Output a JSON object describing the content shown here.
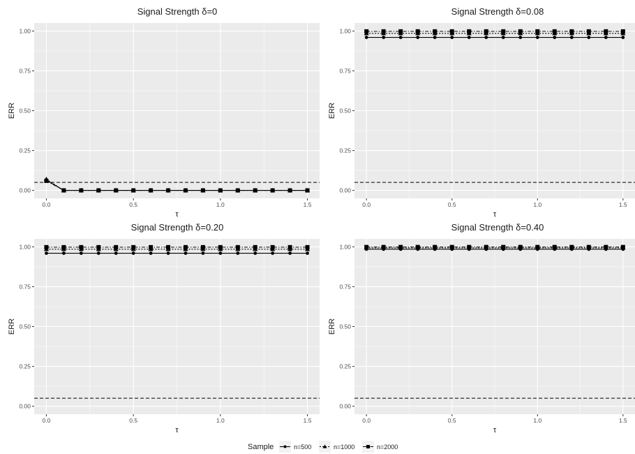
{
  "legend": {
    "title": "Sample",
    "items": [
      {
        "label": "n=500",
        "linetype": "solid",
        "shape": "circle"
      },
      {
        "label": "n=1000",
        "linetype": "dotted",
        "shape": "triangle"
      },
      {
        "label": "n=2000",
        "linetype": "dashdot",
        "shape": "square"
      }
    ]
  },
  "chart_data": [
    {
      "type": "line",
      "title": "Signal Strength δ=0",
      "xlabel": "τ",
      "ylabel": "ERR",
      "xlim": [
        -0.07,
        1.57
      ],
      "ylim": [
        -0.05,
        1.05
      ],
      "xticks": [
        0.0,
        0.5,
        1.0,
        1.5
      ],
      "xtick_labels": [
        "0.0",
        "0.5",
        "1.0",
        "1.5"
      ],
      "yticks": [
        0.0,
        0.25,
        0.5,
        0.75,
        1.0
      ],
      "ytick_labels": [
        "0.00",
        "0.25",
        "0.50",
        "0.75",
        "1.00"
      ],
      "reference_line": 0.05,
      "x": [
        0.0,
        0.1,
        0.2,
        0.3,
        0.4,
        0.5,
        0.6,
        0.7,
        0.8,
        0.9,
        1.0,
        1.1,
        1.2,
        1.3,
        1.4,
        1.5
      ],
      "series": [
        {
          "name": "n=500",
          "values": [
            0.065,
            0,
            0,
            0,
            0,
            0,
            0,
            0,
            0,
            0,
            0,
            0,
            0,
            0,
            0,
            0
          ]
        },
        {
          "name": "n=1000",
          "values": [
            0.07,
            0,
            0,
            0,
            0,
            0,
            0,
            0,
            0,
            0,
            0,
            0,
            0,
            0,
            0,
            0
          ]
        },
        {
          "name": "n=2000",
          "values": [
            0.06,
            0,
            0,
            0,
            0,
            0,
            0,
            0,
            0,
            0,
            0,
            0,
            0,
            0,
            0,
            0
          ]
        }
      ]
    },
    {
      "type": "line",
      "title": "Signal Strength δ=0.08",
      "xlabel": "τ",
      "ylabel": "ERR",
      "xlim": [
        -0.07,
        1.57
      ],
      "ylim": [
        -0.05,
        1.05
      ],
      "xticks": [
        0.0,
        0.5,
        1.0,
        1.5
      ],
      "xtick_labels": [
        "0.0",
        "0.5",
        "1.0",
        "1.5"
      ],
      "yticks": [
        0.0,
        0.25,
        0.5,
        0.75,
        1.0
      ],
      "ytick_labels": [
        "0.00",
        "0.25",
        "0.50",
        "0.75",
        "1.00"
      ],
      "reference_line": 0.05,
      "x": [
        0.0,
        0.1,
        0.2,
        0.3,
        0.4,
        0.5,
        0.6,
        0.7,
        0.8,
        0.9,
        1.0,
        1.1,
        1.2,
        1.3,
        1.4,
        1.5
      ],
      "series": [
        {
          "name": "n=500",
          "values": [
            0.96,
            0.96,
            0.96,
            0.96,
            0.96,
            0.96,
            0.96,
            0.96,
            0.96,
            0.96,
            0.96,
            0.96,
            0.96,
            0.96,
            0.96,
            0.96
          ]
        },
        {
          "name": "n=1000",
          "values": [
            0.985,
            0.985,
            0.985,
            0.985,
            0.985,
            0.985,
            0.985,
            0.985,
            0.985,
            0.985,
            0.985,
            0.985,
            0.985,
            0.985,
            0.985,
            0.985
          ]
        },
        {
          "name": "n=2000",
          "values": [
            0.998,
            0.998,
            0.998,
            0.998,
            0.998,
            0.998,
            0.998,
            0.998,
            0.998,
            0.998,
            0.998,
            0.998,
            0.998,
            0.998,
            0.998,
            0.998
          ]
        }
      ]
    },
    {
      "type": "line",
      "title": "Signal Strength δ=0.20",
      "xlabel": "τ",
      "ylabel": "ERR",
      "xlim": [
        -0.07,
        1.57
      ],
      "ylim": [
        -0.05,
        1.05
      ],
      "xticks": [
        0.0,
        0.5,
        1.0,
        1.5
      ],
      "xtick_labels": [
        "0.0",
        "0.5",
        "1.0",
        "1.5"
      ],
      "yticks": [
        0.0,
        0.25,
        0.5,
        0.75,
        1.0
      ],
      "ytick_labels": [
        "0.00",
        "0.25",
        "0.50",
        "0.75",
        "1.00"
      ],
      "reference_line": 0.05,
      "x": [
        0.0,
        0.1,
        0.2,
        0.3,
        0.4,
        0.5,
        0.6,
        0.7,
        0.8,
        0.9,
        1.0,
        1.1,
        1.2,
        1.3,
        1.4,
        1.5
      ],
      "series": [
        {
          "name": "n=500",
          "values": [
            0.96,
            0.96,
            0.96,
            0.96,
            0.96,
            0.96,
            0.96,
            0.96,
            0.96,
            0.96,
            0.96,
            0.96,
            0.96,
            0.96,
            0.96,
            0.96
          ]
        },
        {
          "name": "n=1000",
          "values": [
            0.985,
            0.985,
            0.985,
            0.985,
            0.985,
            0.985,
            0.985,
            0.985,
            0.985,
            0.985,
            0.985,
            0.985,
            0.985,
            0.985,
            0.985,
            0.985
          ]
        },
        {
          "name": "n=2000",
          "values": [
            0.998,
            0.998,
            0.998,
            0.998,
            0.998,
            0.998,
            0.998,
            0.998,
            0.998,
            0.998,
            0.998,
            0.998,
            0.998,
            0.998,
            0.998,
            0.998
          ]
        }
      ]
    },
    {
      "type": "line",
      "title": "Signal Strength δ=0.40",
      "xlabel": "τ",
      "ylabel": "ERR",
      "xlim": [
        -0.07,
        1.57
      ],
      "ylim": [
        -0.05,
        1.05
      ],
      "xticks": [
        0.0,
        0.5,
        1.0,
        1.5
      ],
      "xtick_labels": [
        "0.0",
        "0.5",
        "1.0",
        "1.5"
      ],
      "yticks": [
        0.0,
        0.25,
        0.5,
        0.75,
        1.0
      ],
      "ytick_labels": [
        "0.00",
        "0.25",
        "0.50",
        "0.75",
        "1.00"
      ],
      "reference_line": 0.05,
      "x": [
        0.0,
        0.1,
        0.2,
        0.3,
        0.4,
        0.5,
        0.6,
        0.7,
        0.8,
        0.9,
        1.0,
        1.1,
        1.2,
        1.3,
        1.4,
        1.5
      ],
      "series": [
        {
          "name": "n=500",
          "values": [
            0.985,
            0.985,
            0.985,
            0.985,
            0.985,
            0.985,
            0.985,
            0.985,
            0.985,
            0.985,
            0.985,
            0.985,
            0.985,
            0.985,
            0.985,
            0.985
          ]
        },
        {
          "name": "n=1000",
          "values": [
            0.993,
            0.993,
            0.993,
            0.993,
            0.993,
            0.993,
            0.993,
            0.993,
            0.993,
            0.993,
            0.993,
            0.993,
            0.993,
            0.993,
            0.993,
            0.993
          ]
        },
        {
          "name": "n=2000",
          "values": [
            0.999,
            0.999,
            0.999,
            0.999,
            0.999,
            0.999,
            0.999,
            0.999,
            0.999,
            0.999,
            0.999,
            0.999,
            0.999,
            0.999,
            0.999,
            0.999
          ]
        }
      ]
    }
  ]
}
